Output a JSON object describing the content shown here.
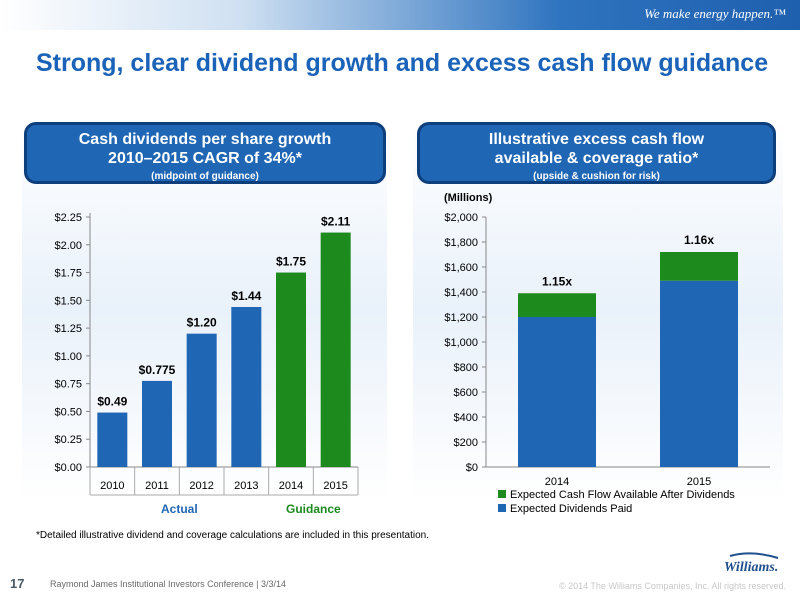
{
  "header": {
    "tagline": "We make energy happen.™",
    "title": "Strong, clear dividend growth and excess cash flow guidance"
  },
  "left_panel": {
    "line1": "Cash dividends per share growth",
    "line2": "2010–2015 CAGR of 34%*",
    "line3": "(midpoint of guidance)"
  },
  "right_panel": {
    "line1": "Illustrative excess cash flow",
    "line2": "available & coverage ratio*",
    "line3": "(upside & cushion for risk)"
  },
  "footnote": "*Detailed illustrative dividend and coverage calculations are included in this presentation.",
  "footer": {
    "page": "17",
    "conference": "Raymond James Institutional Investors Conference  |  3/3/14",
    "copyright": "© 2014 The Williams Companies, Inc. All rights reserved.",
    "logo_text": "Williams."
  },
  "colors": {
    "actual_blue": "#1f66b5",
    "guidance_green": "#1d8a1d",
    "paid_blue": "#1f66b5",
    "available_green": "#1d8a1d"
  },
  "chart_data": [
    {
      "type": "bar",
      "title": "Cash dividends per share growth 2010–2015 CAGR of 34%*",
      "categories": [
        "2010",
        "2011",
        "2012",
        "2013",
        "2014",
        "2015"
      ],
      "values": [
        0.49,
        0.775,
        1.2,
        1.44,
        1.75,
        2.11
      ],
      "value_labels": [
        "$0.49",
        "$0.775",
        "$1.20",
        "$1.44",
        "$1.75",
        "$2.11"
      ],
      "groups": [
        {
          "label": "Actual",
          "categories": [
            "2010",
            "2011",
            "2012",
            "2013"
          ],
          "color": "#1f66b5"
        },
        {
          "label": "Guidance",
          "categories": [
            "2014",
            "2015"
          ],
          "color": "#1d8a1d"
        }
      ],
      "yticks": [
        "$0.00",
        "$0.25",
        "$0.50",
        "$0.75",
        "$1.00",
        "$1.25",
        "$1.50",
        "$1.75",
        "$2.00",
        "$2.25"
      ],
      "ylim": [
        0,
        2.25
      ],
      "grid": false
    },
    {
      "type": "bar",
      "stacked": true,
      "ylabel": "(Millions)",
      "categories": [
        "2014",
        "2015"
      ],
      "series": [
        {
          "name": "Expected Dividends Paid",
          "values": [
            1200,
            1490
          ],
          "color": "#1f66b5"
        },
        {
          "name": "Expected Cash Flow Available After Dividends",
          "values": [
            190,
            230
          ],
          "color": "#1d8a1d"
        }
      ],
      "annotations": [
        "1.15x",
        "1.16x"
      ],
      "yticks": [
        "$0",
        "$200",
        "$400",
        "$600",
        "$800",
        "$1,000",
        "$1,200",
        "$1,400",
        "$1,600",
        "$1,800",
        "$2,000"
      ],
      "ylim": [
        0,
        2000
      ],
      "legend": "bottom",
      "grid": false
    }
  ]
}
